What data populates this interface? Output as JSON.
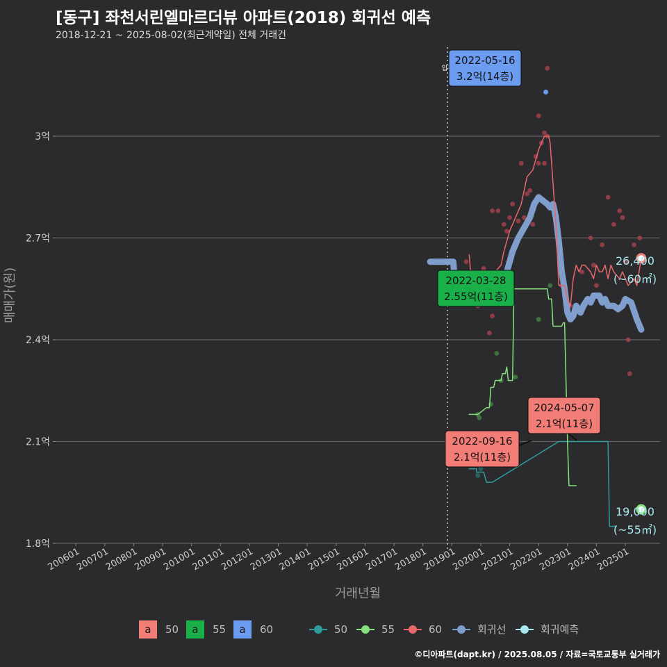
{
  "title": "[동구] 좌천서린엘마르더뷰 아파트(2018) 회귀선 예측",
  "subtitle": "2018-12-21 ~ 2025-08-02(최근계약일) 전체 거래건",
  "caption": "©디아파트(dapt.kr) / 2025.08.05 / 자료=국토교통부 실거래가",
  "chart_data": {
    "type": "line",
    "xlabel": "거래년월",
    "ylabel": "매매가(원)",
    "ylim": [
      1.8,
      3.2
    ],
    "yticks": [
      {
        "v": 1.8,
        "label": "1.8억"
      },
      {
        "v": 2.1,
        "label": "2.1억"
      },
      {
        "v": 2.4,
        "label": "2.4억"
      },
      {
        "v": 2.7,
        "label": "2.7억"
      },
      {
        "v": 3.0,
        "label": "3억"
      }
    ],
    "xticks": [
      {
        "v": 2006.0,
        "label": "200601"
      },
      {
        "v": 2007.0,
        "label": "200701"
      },
      {
        "v": 2008.0,
        "label": "200801"
      },
      {
        "v": 2009.0,
        "label": "200901"
      },
      {
        "v": 2010.0,
        "label": "201001"
      },
      {
        "v": 2011.0,
        "label": "201101"
      },
      {
        "v": 2012.0,
        "label": "201201"
      },
      {
        "v": 2013.0,
        "label": "201301"
      },
      {
        "v": 2014.0,
        "label": "201401"
      },
      {
        "v": 2015.0,
        "label": "201501"
      },
      {
        "v": 2016.0,
        "label": "201601"
      },
      {
        "v": 2017.0,
        "label": "201701"
      },
      {
        "v": 2018.0,
        "label": "201801"
      },
      {
        "v": 2019.0,
        "label": "201901"
      },
      {
        "v": 2020.0,
        "label": "202001"
      },
      {
        "v": 2021.0,
        "label": "202101"
      },
      {
        "v": 2022.0,
        "label": "202201"
      },
      {
        "v": 2023.0,
        "label": "202301"
      },
      {
        "v": 2024.0,
        "label": "202401"
      },
      {
        "v": 2025.0,
        "label": "202501"
      }
    ],
    "grid": true,
    "vline": {
      "x": 2018.85,
      "label": "입주"
    },
    "series": [
      {
        "name": "50",
        "color": "#2e9c9c",
        "width": 1.5,
        "points": [
          [
            2019.6,
            2.02
          ],
          [
            2019.85,
            2.02
          ],
          [
            2019.85,
            2.01
          ],
          [
            2020.1,
            2.01
          ],
          [
            2020.2,
            1.98
          ],
          [
            2020.4,
            1.98
          ],
          [
            2022.7,
            2.1
          ],
          [
            2023.0,
            2.1
          ],
          [
            2023.1,
            2.1
          ],
          [
            2023.7,
            2.1
          ],
          [
            2023.9,
            2.1
          ],
          [
            2024.3,
            2.1
          ],
          [
            2024.4,
            2.1
          ],
          [
            2024.45,
            1.85
          ],
          [
            2024.7,
            1.85
          ]
        ]
      },
      {
        "name": "55",
        "color": "#86e07e",
        "width": 1.5,
        "points": [
          [
            2019.6,
            2.18
          ],
          [
            2019.9,
            2.18
          ],
          [
            2020.2,
            2.2
          ],
          [
            2020.3,
            2.2
          ],
          [
            2020.35,
            2.26
          ],
          [
            2020.45,
            2.26
          ],
          [
            2020.5,
            2.28
          ],
          [
            2020.7,
            2.28
          ],
          [
            2020.75,
            2.3
          ],
          [
            2020.85,
            2.3
          ],
          [
            2020.9,
            2.32
          ],
          [
            2020.95,
            2.28
          ],
          [
            2021.1,
            2.28
          ],
          [
            2021.15,
            2.55
          ],
          [
            2022.3,
            2.55
          ],
          [
            2022.35,
            2.52
          ],
          [
            2022.45,
            2.52
          ],
          [
            2022.5,
            2.44
          ],
          [
            2022.8,
            2.44
          ],
          [
            2022.85,
            2.45
          ],
          [
            2022.9,
            2.45
          ],
          [
            2023.0,
            2.1
          ],
          [
            2023.05,
            1.97
          ],
          [
            2023.3,
            1.97
          ]
        ]
      },
      {
        "name": "60",
        "color": "#e8676b",
        "width": 1.5,
        "points": [
          [
            2019.6,
            2.65
          ],
          [
            2019.65,
            2.6
          ],
          [
            2019.8,
            2.58
          ],
          [
            2019.9,
            2.56
          ],
          [
            2020.0,
            2.58
          ],
          [
            2020.1,
            2.58
          ],
          [
            2020.2,
            2.58
          ],
          [
            2020.3,
            2.6
          ],
          [
            2020.5,
            2.6
          ],
          [
            2020.7,
            2.62
          ],
          [
            2020.8,
            2.66
          ],
          [
            2021.0,
            2.72
          ],
          [
            2021.2,
            2.76
          ],
          [
            2021.4,
            2.8
          ],
          [
            2021.5,
            2.84
          ],
          [
            2021.6,
            2.88
          ],
          [
            2021.8,
            2.9
          ],
          [
            2022.0,
            2.96
          ],
          [
            2022.1,
            2.98
          ],
          [
            2022.2,
            3.0
          ],
          [
            2022.35,
            3.0
          ],
          [
            2022.4,
            2.98
          ],
          [
            2022.5,
            2.86
          ],
          [
            2022.6,
            2.74
          ],
          [
            2022.7,
            2.56
          ],
          [
            2022.8,
            2.56
          ],
          [
            2022.9,
            2.56
          ],
          [
            2023.0,
            2.52
          ],
          [
            2023.1,
            2.5
          ],
          [
            2023.2,
            2.58
          ],
          [
            2023.3,
            2.62
          ],
          [
            2023.4,
            2.6
          ],
          [
            2023.5,
            2.62
          ],
          [
            2023.6,
            2.62
          ],
          [
            2023.8,
            2.6
          ],
          [
            2023.9,
            2.58
          ],
          [
            2024.0,
            2.62
          ],
          [
            2024.1,
            2.6
          ],
          [
            2024.2,
            2.6
          ],
          [
            2024.3,
            2.62
          ],
          [
            2024.4,
            2.58
          ],
          [
            2024.5,
            2.62
          ],
          [
            2024.6,
            2.6
          ],
          [
            2024.8,
            2.58
          ],
          [
            2024.9,
            2.6
          ],
          [
            2025.0,
            2.58
          ],
          [
            2025.1,
            2.56
          ],
          [
            2025.3,
            2.58
          ],
          [
            2025.4,
            2.56
          ],
          [
            2025.55,
            2.64
          ]
        ]
      },
      {
        "name": "회귀선",
        "color": "#7f9ecb",
        "width": 9,
        "points": [
          [
            2018.25,
            2.63
          ],
          [
            2019.05,
            2.63
          ],
          [
            2019.15,
            2.52
          ],
          [
            2019.5,
            2.52
          ],
          [
            2019.6,
            2.51
          ],
          [
            2020.1,
            2.52
          ],
          [
            2020.4,
            2.52
          ],
          [
            2020.6,
            2.54
          ],
          [
            2020.9,
            2.6
          ],
          [
            2021.1,
            2.66
          ],
          [
            2021.3,
            2.7
          ],
          [
            2021.5,
            2.73
          ],
          [
            2021.7,
            2.76
          ],
          [
            2021.85,
            2.8
          ],
          [
            2022.0,
            2.82
          ],
          [
            2022.15,
            2.81
          ],
          [
            2022.3,
            2.8
          ],
          [
            2022.4,
            2.79
          ],
          [
            2022.5,
            2.8
          ],
          [
            2022.6,
            2.76
          ],
          [
            2022.7,
            2.69
          ],
          [
            2022.8,
            2.6
          ],
          [
            2022.9,
            2.55
          ],
          [
            2023.0,
            2.48
          ],
          [
            2023.1,
            2.46
          ],
          [
            2023.2,
            2.47
          ],
          [
            2023.3,
            2.5
          ],
          [
            2023.45,
            2.48
          ],
          [
            2023.55,
            2.5
          ],
          [
            2023.7,
            2.52
          ],
          [
            2023.8,
            2.51
          ],
          [
            2023.9,
            2.53
          ],
          [
            2024.1,
            2.53
          ],
          [
            2024.2,
            2.51
          ],
          [
            2024.3,
            2.52
          ],
          [
            2024.4,
            2.5
          ],
          [
            2024.6,
            2.5
          ],
          [
            2024.75,
            2.49
          ],
          [
            2024.9,
            2.5
          ],
          [
            2025.0,
            2.52
          ],
          [
            2025.2,
            2.51
          ],
          [
            2025.4,
            2.46
          ],
          [
            2025.55,
            2.43
          ]
        ]
      }
    ],
    "scatter": [
      {
        "series": "60",
        "color": "#b94450",
        "points": [
          [
            2019.5,
            2.63
          ],
          [
            2019.7,
            2.6
          ],
          [
            2019.8,
            2.58
          ],
          [
            2019.9,
            2.5
          ],
          [
            2020.0,
            2.58
          ],
          [
            2020.1,
            2.61
          ],
          [
            2020.2,
            2.54
          ],
          [
            2020.3,
            2.42
          ],
          [
            2020.4,
            2.47
          ],
          [
            2020.5,
            2.52
          ],
          [
            2020.4,
            2.78
          ],
          [
            2020.6,
            2.78
          ],
          [
            2020.8,
            2.74
          ],
          [
            2020.9,
            2.72
          ],
          [
            2021.0,
            2.76
          ],
          [
            2021.1,
            2.8
          ],
          [
            2021.3,
            2.75
          ],
          [
            2021.5,
            2.76
          ],
          [
            2021.6,
            2.83
          ],
          [
            2021.7,
            2.84
          ],
          [
            2021.8,
            2.78
          ],
          [
            2021.9,
            2.94
          ],
          [
            2022.0,
            2.92
          ],
          [
            2022.1,
            2.98
          ],
          [
            2022.2,
            3.01
          ],
          [
            2022.3,
            3.0
          ],
          [
            2021.4,
            2.92
          ],
          [
            2021.8,
            2.74
          ],
          [
            2022.2,
            2.92
          ],
          [
            2022.0,
            3.06
          ],
          [
            2022.3,
            3.2
          ],
          [
            2022.5,
            2.8
          ],
          [
            2022.8,
            2.56
          ],
          [
            2023.1,
            2.5
          ],
          [
            2023.5,
            2.6
          ],
          [
            2023.8,
            2.7
          ],
          [
            2023.9,
            2.62
          ],
          [
            2024.0,
            2.56
          ],
          [
            2024.2,
            2.68
          ],
          [
            2024.4,
            2.82
          ],
          [
            2024.6,
            2.74
          ],
          [
            2024.8,
            2.78
          ],
          [
            2024.9,
            2.76
          ],
          [
            2025.0,
            2.63
          ],
          [
            2025.1,
            2.4
          ],
          [
            2025.15,
            2.3
          ],
          [
            2025.3,
            2.68
          ],
          [
            2025.5,
            2.7
          ]
        ]
      },
      {
        "series": "55",
        "color": "#4b8f48",
        "points": [
          [
            2019.9,
            2.18
          ],
          [
            2019.95,
            2.17
          ],
          [
            2020.35,
            2.21
          ],
          [
            2020.55,
            2.36
          ],
          [
            2020.7,
            2.28
          ],
          [
            2021.2,
            2.29
          ],
          [
            2022.0,
            2.46
          ],
          [
            2022.4,
            2.56
          ]
        ]
      },
      {
        "series": "50",
        "color": "#2a7878",
        "points": [
          [
            2019.9,
            2.0
          ],
          [
            2020.0,
            2.02
          ]
        ]
      }
    ],
    "annotations": [
      {
        "x": 2022.37,
        "y": 3.2,
        "date": "2022-05-16",
        "text": "3.2억(14층)",
        "fill": "#6c9cf0",
        "target_x": 2022.25,
        "target_y": 3.13
      },
      {
        "x": 2022.24,
        "y": 2.55,
        "date": "2022-03-28",
        "text": "2.55억(11층)",
        "fill": "#19b04a"
      },
      {
        "x": 2022.71,
        "y": 2.1,
        "date": "2022-09-16",
        "text": "2.1억(11층)",
        "fill": "#f27c76"
      },
      {
        "x": 2024.35,
        "y": 2.1,
        "date": "2024-05-07",
        "text": "2.1억(11층)",
        "fill": "#f27c76"
      }
    ],
    "end_points": [
      {
        "series": "60",
        "x": 2025.55,
        "y": 2.64,
        "color": "#f27c76",
        "value": "26,400",
        "area": "(~60㎡)"
      },
      {
        "series": "55",
        "x": 2025.55,
        "y": 1.9,
        "color": "#86e07e",
        "value": "19,000",
        "area": "(~55㎡)"
      }
    ],
    "legend_left": {
      "placement": "bottom-left",
      "items": [
        {
          "letter": "a",
          "name": "50",
          "color": "#f27c76"
        },
        {
          "letter": "a",
          "name": "55",
          "color": "#19b04a"
        },
        {
          "letter": "a",
          "name": "60",
          "color": "#6c9cf0"
        }
      ]
    },
    "legend_right": {
      "placement": "bottom-right",
      "items": [
        {
          "name": "50",
          "color": "#2e9c9c"
        },
        {
          "name": "55",
          "color": "#86e07e"
        },
        {
          "name": "60",
          "color": "#e8676b"
        },
        {
          "name": "회귀선",
          "color": "#7f9ecb"
        },
        {
          "name": "회귀예측",
          "color": "#a8e8ec"
        }
      ]
    }
  }
}
